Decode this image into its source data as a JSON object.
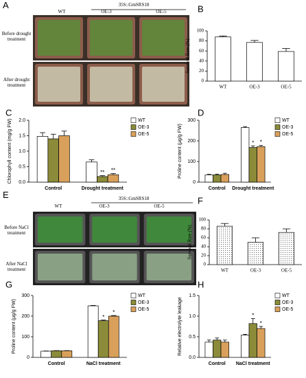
{
  "photos": [
    {
      "letter": "A",
      "group": "35S::GmSRS18",
      "columns": [
        "WT",
        "OE-3",
        "OE-5"
      ],
      "rows": [
        "Before drought treatment",
        "After drought treatment"
      ]
    },
    {
      "letter": "E",
      "group": "35S::GmSRS18",
      "columns": [
        "WT",
        "OE-3",
        "OE-5"
      ],
      "rows": [
        "Before NaCl treatment",
        "After NaCl treatment"
      ]
    }
  ],
  "chart_data": [
    {
      "type": "bar",
      "letter": "B",
      "ylabel": "Survival Rate (%)",
      "categories": [
        "WT",
        "OE-3",
        "OE-5"
      ],
      "values": [
        88,
        77,
        59
      ],
      "errors": [
        2,
        4,
        6
      ],
      "color": "#ffffff",
      "ylim": [
        0,
        100
      ],
      "yticks": [
        0,
        20,
        40,
        60,
        80,
        100
      ]
    },
    {
      "type": "bar",
      "letter": "C",
      "ylabel": "Chlorophyll content (mg/g FW)",
      "categories": [
        "Control",
        "Drought treatment"
      ],
      "series": [
        {
          "name": "WT",
          "color": "#ffffff",
          "values": [
            1.48,
            0.65
          ],
          "errors": [
            0.12,
            0.07
          ]
        },
        {
          "name": "OE-3",
          "color": "#8b8b3a",
          "values": [
            1.4,
            0.18
          ],
          "errors": [
            0.15,
            0.03
          ],
          "annotations": [
            null,
            "**"
          ]
        },
        {
          "name": "OE-5",
          "color": "#d9a05b",
          "values": [
            1.5,
            0.24
          ],
          "errors": [
            0.15,
            0.04
          ],
          "annotations": [
            null,
            "**"
          ]
        }
      ],
      "ylim": [
        0,
        2
      ],
      "yticks": [
        {
          "value": 0,
          "label": "0.0"
        },
        0.5,
        {
          "value": 1,
          "label": "1.0"
        },
        1.5,
        {
          "value": 2,
          "label": "2.0"
        }
      ]
    },
    {
      "type": "bar",
      "letter": "D",
      "ylabel": "Proline content (μg/g FW)",
      "categories": [
        "Control",
        "Drought treatment"
      ],
      "series": [
        {
          "name": "WT",
          "color": "#ffffff",
          "values": [
            35,
            265
          ],
          "errors": [
            3,
            4
          ]
        },
        {
          "name": "OE-3",
          "color": "#8b8b3a",
          "values": [
            35,
            168
          ],
          "errors": [
            4,
            8
          ],
          "annotations": [
            null,
            "*"
          ]
        },
        {
          "name": "OE-5",
          "color": "#d9a05b",
          "values": [
            37,
            172
          ],
          "errors": [
            6,
            6
          ],
          "annotations": [
            null,
            "*"
          ]
        }
      ],
      "ylim": [
        0,
        300
      ],
      "yticks": [
        0,
        100,
        200,
        300
      ]
    },
    {
      "type": "bar",
      "letter": "F",
      "ylabel": "Survival Rate (%)",
      "categories": [
        "WT",
        "OE-3",
        "OE-5"
      ],
      "values": [
        86,
        50,
        72
      ],
      "errors": [
        6,
        10,
        8
      ],
      "color": "#ffffff",
      "hatch": true,
      "ylim": [
        0,
        100
      ],
      "yticks": [
        0,
        20,
        40,
        60,
        80,
        100
      ]
    },
    {
      "type": "bar",
      "letter": "G",
      "ylabel": "Proline content (μg/g FW)",
      "categories": [
        "Control",
        "NaCl treatment"
      ],
      "series": [
        {
          "name": "WT",
          "color": "#ffffff",
          "values": [
            30,
            250
          ],
          "errors": [
            1,
            2
          ]
        },
        {
          "name": "OE-3",
          "color": "#8b8b3a",
          "values": [
            32,
            178
          ],
          "errors": [
            1,
            3
          ],
          "annotations": [
            null,
            "*"
          ]
        },
        {
          "name": "OE-5",
          "color": "#d9a05b",
          "values": [
            32,
            200
          ],
          "errors": [
            1,
            3
          ],
          "annotations": [
            null,
            "*"
          ]
        }
      ],
      "ylim": [
        0,
        300
      ],
      "yticks": [
        0,
        100,
        200,
        300
      ]
    },
    {
      "type": "bar",
      "letter": "H",
      "ylabel": "Relative electrolyte leakage",
      "categories": [
        "Control",
        "NaCl treatment"
      ],
      "series": [
        {
          "name": "WT",
          "color": "#ffffff",
          "values": [
            0.37,
            0.54
          ],
          "errors": [
            0.05,
            0.02
          ]
        },
        {
          "name": "OE-3",
          "color": "#8b8b3a",
          "values": [
            0.42,
            0.82
          ],
          "errors": [
            0.05,
            0.12
          ],
          "annotations": [
            null,
            "*"
          ]
        },
        {
          "name": "OE-5",
          "color": "#d9a05b",
          "values": [
            0.37,
            0.7
          ],
          "errors": [
            0.05,
            0.05
          ],
          "annotations": [
            null,
            "*"
          ]
        }
      ],
      "ylim": [
        0,
        1.5
      ],
      "yticks": [
        {
          "value": 0,
          "label": "0.0"
        },
        0.5,
        {
          "value": 1,
          "label": "1.0"
        },
        1.5
      ]
    }
  ]
}
